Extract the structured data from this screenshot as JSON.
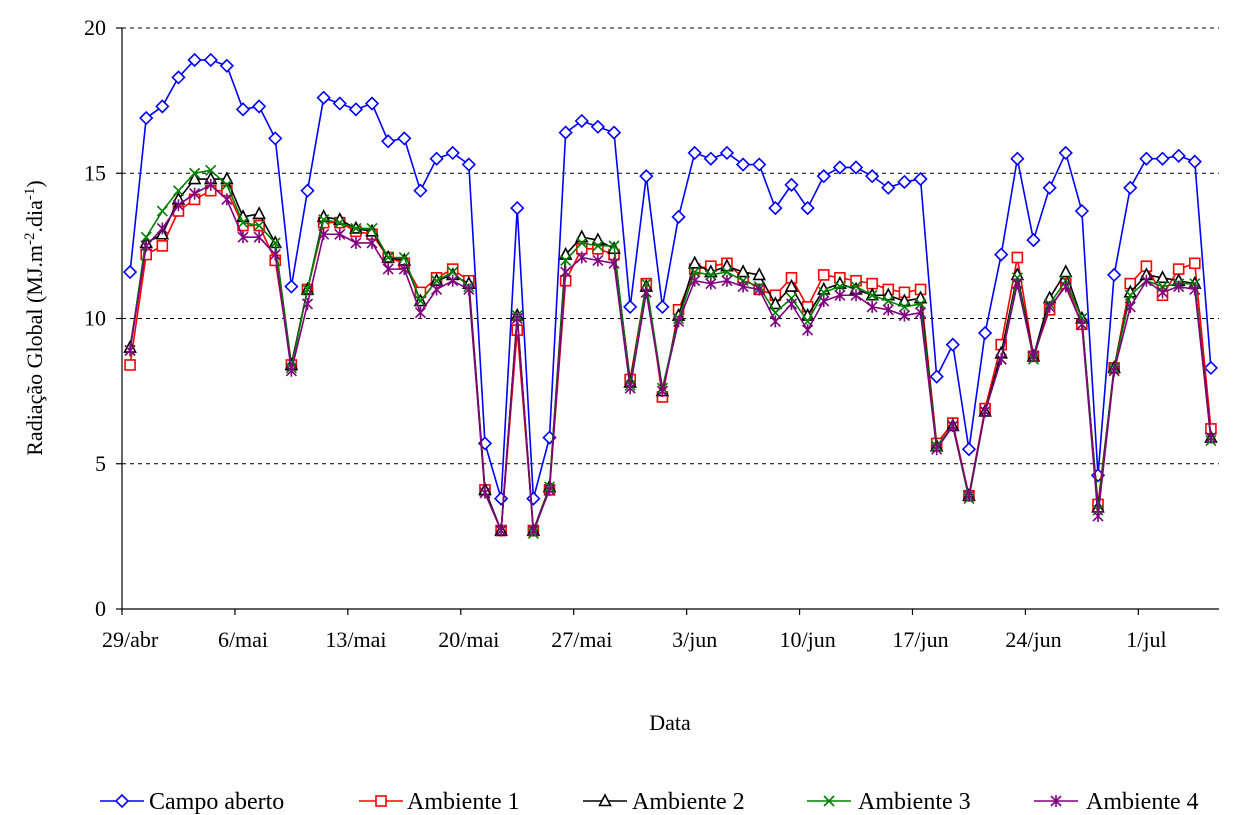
{
  "chart_data": {
    "type": "line",
    "title": "",
    "xlabel": "Data",
    "ylabel": "Radiação Global (MJ.m-2.dia-1)",
    "ylabel_parts": [
      "Radiação Global (MJ.m",
      "-2",
      ".dia",
      "-1",
      ")"
    ],
    "ylim": [
      0,
      20
    ],
    "yticks": [
      0,
      5,
      10,
      15,
      20
    ],
    "grid": "horizontal dashed",
    "legend_position": "bottom",
    "x_start": "29/abr",
    "x_tick_labels": [
      {
        "label": "29/abr",
        "index": 0
      },
      {
        "label": "6/mai",
        "index": 7
      },
      {
        "label": "13/mai",
        "index": 14
      },
      {
        "label": "20/mai",
        "index": 21
      },
      {
        "label": "27/mai",
        "index": 28
      },
      {
        "label": "3/jun",
        "index": 35
      },
      {
        "label": "10/jun",
        "index": 42
      },
      {
        "label": "17/jun",
        "index": 49
      },
      {
        "label": "24/jun",
        "index": 56
      },
      {
        "label": "1/jul",
        "index": 63
      }
    ],
    "series": [
      {
        "name": "Campo aberto",
        "color": "#0000ff",
        "marker": "diamond",
        "values": [
          11.6,
          16.9,
          17.3,
          18.3,
          18.9,
          18.9,
          18.7,
          17.2,
          17.3,
          16.2,
          11.1,
          14.4,
          17.6,
          17.4,
          17.2,
          17.4,
          16.1,
          16.2,
          14.4,
          15.5,
          15.7,
          15.3,
          5.7,
          3.8,
          13.8,
          3.8,
          5.9,
          16.4,
          16.8,
          16.6,
          16.4,
          10.4,
          14.9,
          10.4,
          13.5,
          15.7,
          15.5,
          15.7,
          15.3,
          15.3,
          13.8,
          14.6,
          13.8,
          14.9,
          15.2,
          15.2,
          14.9,
          14.5,
          14.7,
          14.8,
          8.0,
          9.1,
          5.5,
          9.5,
          12.2,
          15.5,
          12.7,
          14.5,
          15.7,
          13.7,
          4.6,
          11.5,
          14.5,
          15.5,
          15.5,
          15.6,
          15.4,
          8.3
        ]
      },
      {
        "name": "Ambiente 1",
        "color": "#ff0000",
        "marker": "square",
        "values": [
          8.4,
          12.2,
          12.5,
          13.7,
          14.1,
          14.4,
          14.4,
          13.2,
          13.2,
          12.0,
          8.4,
          11.0,
          13.3,
          13.3,
          13.0,
          12.9,
          12.1,
          11.9,
          10.9,
          11.4,
          11.7,
          11.3,
          4.1,
          2.7,
          9.6,
          2.7,
          4.1,
          11.3,
          12.4,
          12.4,
          12.2,
          7.9,
          11.2,
          7.3,
          10.3,
          11.7,
          11.8,
          11.9,
          11.4,
          11.0,
          10.8,
          11.4,
          10.4,
          11.5,
          11.4,
          11.3,
          11.2,
          11.0,
          10.9,
          11.0,
          5.7,
          6.4,
          3.9,
          6.9,
          9.1,
          12.1,
          8.7,
          10.3,
          11.2,
          9.8,
          3.6,
          8.3,
          11.2,
          11.8,
          10.8,
          11.7,
          11.9,
          6.2
        ]
      },
      {
        "name": "Ambiente 2",
        "color": "#000000",
        "marker": "triangle",
        "values": [
          9.0,
          12.6,
          12.9,
          14.1,
          14.8,
          14.8,
          14.8,
          13.5,
          13.6,
          12.6,
          8.4,
          11.0,
          13.5,
          13.4,
          13.1,
          13.0,
          12.1,
          12.0,
          10.6,
          11.3,
          11.5,
          11.2,
          4.1,
          2.7,
          10.1,
          2.7,
          4.2,
          12.2,
          12.8,
          12.7,
          12.4,
          7.8,
          11.1,
          7.5,
          10.1,
          11.9,
          11.6,
          11.8,
          11.6,
          11.5,
          10.5,
          11.1,
          10.1,
          11.0,
          11.2,
          11.0,
          10.8,
          10.8,
          10.6,
          10.7,
          5.6,
          6.3,
          3.9,
          6.8,
          8.8,
          11.5,
          8.7,
          10.7,
          11.6,
          10.0,
          3.5,
          8.3,
          10.9,
          11.5,
          11.4,
          11.3,
          11.2,
          5.9
        ]
      },
      {
        "name": "Ambiente 3",
        "color": "#008000",
        "marker": "x",
        "values": [
          8.9,
          12.8,
          13.7,
          14.4,
          15.0,
          15.1,
          14.6,
          13.3,
          13.2,
          12.6,
          8.3,
          11.0,
          13.4,
          13.3,
          13.1,
          13.1,
          12.1,
          12.1,
          10.6,
          11.3,
          11.6,
          11.1,
          4.0,
          2.7,
          10.1,
          2.6,
          4.2,
          12.0,
          12.6,
          12.5,
          12.5,
          7.7,
          11.2,
          7.6,
          10.0,
          11.6,
          11.5,
          11.6,
          11.3,
          11.1,
          10.2,
          10.7,
          9.9,
          10.9,
          11.1,
          11.1,
          10.8,
          10.6,
          10.4,
          10.5,
          5.6,
          6.3,
          3.8,
          6.8,
          8.6,
          11.4,
          8.6,
          10.5,
          11.3,
          10.0,
          3.4,
          8.3,
          10.8,
          11.3,
          11.1,
          11.2,
          11.2,
          5.8
        ]
      },
      {
        "name": "Ambiente 4",
        "color": "#800080",
        "marker": "star",
        "values": [
          8.9,
          12.5,
          13.1,
          13.9,
          14.3,
          14.6,
          14.1,
          12.8,
          12.8,
          12.2,
          8.2,
          10.5,
          12.9,
          12.9,
          12.6,
          12.6,
          11.7,
          11.7,
          10.2,
          11.0,
          11.3,
          11.0,
          4.0,
          2.7,
          10.0,
          2.7,
          4.1,
          11.6,
          12.1,
          12.0,
          11.9,
          7.6,
          10.9,
          7.5,
          9.9,
          11.3,
          11.2,
          11.3,
          11.1,
          11.0,
          9.9,
          10.5,
          9.6,
          10.6,
          10.8,
          10.8,
          10.4,
          10.3,
          10.1,
          10.2,
          5.5,
          6.3,
          3.9,
          6.8,
          8.6,
          11.2,
          8.7,
          10.4,
          11.1,
          9.8,
          3.2,
          8.2,
          10.4,
          11.3,
          10.9,
          11.1,
          11.0,
          5.9
        ]
      }
    ]
  }
}
